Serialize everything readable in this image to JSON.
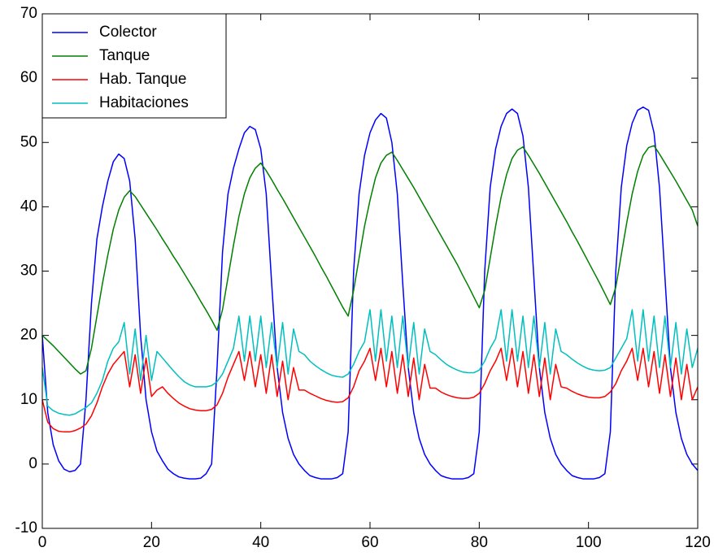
{
  "chart_data": {
    "type": "line",
    "x": [
      0,
      1,
      2,
      3,
      4,
      5,
      6,
      7,
      8,
      9,
      10,
      11,
      12,
      13,
      14,
      15,
      16,
      17,
      18,
      19,
      20,
      21,
      22,
      23,
      24,
      25,
      26,
      27,
      28,
      29,
      30,
      31,
      32,
      33,
      34,
      35,
      36,
      37,
      38,
      39,
      40,
      41,
      42,
      43,
      44,
      45,
      46,
      47,
      48,
      49,
      50,
      51,
      52,
      53,
      54,
      55,
      56,
      57,
      58,
      59,
      60,
      61,
      62,
      63,
      64,
      65,
      66,
      67,
      68,
      69,
      70,
      71,
      72,
      73,
      74,
      75,
      76,
      77,
      78,
      79,
      80,
      81,
      82,
      83,
      84,
      85,
      86,
      87,
      88,
      89,
      90,
      91,
      92,
      93,
      94,
      95,
      96,
      97,
      98,
      99,
      100,
      101,
      102,
      103,
      104,
      105,
      106,
      107,
      108,
      109,
      110,
      111,
      112,
      113,
      114,
      115,
      116,
      117,
      118,
      119,
      120
    ],
    "series": [
      {
        "name": "Colector",
        "color": "#0000ff",
        "values": [
          20,
          8,
          3,
          0.5,
          -0.8,
          -1.2,
          -1,
          0,
          10,
          25,
          35,
          40,
          44,
          47,
          48.2,
          47.5,
          44,
          35,
          20,
          10,
          5,
          2,
          0.5,
          -0.8,
          -1.5,
          -2,
          -2.2,
          -2.3,
          -2.3,
          -2.2,
          -1.5,
          0,
          15,
          33,
          42,
          46,
          49,
          51.5,
          52.5,
          52,
          49,
          42,
          28,
          15,
          8,
          4,
          1.5,
          0,
          -1,
          -1.8,
          -2.1,
          -2.3,
          -2.3,
          -2.3,
          -2.1,
          -1.5,
          5,
          30,
          42,
          48,
          51.5,
          53.5,
          54.5,
          53.8,
          50,
          42,
          28,
          15,
          8,
          4,
          1.5,
          0,
          -1,
          -1.8,
          -2.1,
          -2.3,
          -2.3,
          -2.3,
          -2.1,
          -1.5,
          5,
          30,
          43,
          49,
          52.5,
          54.5,
          55.2,
          54.5,
          51,
          43,
          29,
          15,
          8,
          4,
          1.5,
          0,
          -1,
          -1.8,
          -2.1,
          -2.3,
          -2.3,
          -2.3,
          -2.1,
          -1.5,
          5,
          30,
          43,
          49.5,
          53,
          55,
          55.5,
          55,
          51.5,
          43,
          29,
          15,
          8,
          4,
          1.5,
          0,
          -1
        ]
      },
      {
        "name": "Tanque",
        "color": "#008000",
        "values": [
          20,
          19.2,
          18.4,
          17.5,
          16.6,
          15.7,
          14.8,
          14,
          14.5,
          18,
          23,
          28,
          32.5,
          36.5,
          39.5,
          41.5,
          42.5,
          41.6,
          40.3,
          39,
          37.7,
          36.4,
          35,
          33.7,
          32.3,
          31,
          29.6,
          28.2,
          26.8,
          25.3,
          23.9,
          22.4,
          20.8,
          24,
          29,
          34,
          38.5,
          42,
          44.5,
          46,
          46.8,
          45.6,
          44.2,
          42.7,
          41.3,
          39.8,
          38.3,
          36.8,
          35.3,
          33.8,
          32.3,
          30.7,
          29.2,
          27.6,
          26,
          24.4,
          23,
          27,
          32,
          37,
          41,
          44.5,
          46.8,
          48,
          48.5,
          47.2,
          45.8,
          44.4,
          43,
          41.5,
          40,
          38.5,
          37,
          35.5,
          34,
          32.5,
          31,
          29.3,
          27.7,
          26,
          24.3,
          27,
          32,
          37,
          41.5,
          45,
          47.5,
          48.8,
          49.3,
          48,
          46.6,
          45.2,
          43.7,
          42.2,
          40.7,
          39.2,
          37.7,
          36.1,
          34.6,
          33,
          31.4,
          29.8,
          28.2,
          26.5,
          24.8,
          27.5,
          32.5,
          37.5,
          42,
          45.5,
          48,
          49.2,
          49.5,
          48.2,
          46.8,
          45.4,
          44,
          42.5,
          41,
          39.5,
          37
        ]
      },
      {
        "name": "Hab. Tanque",
        "color": "#ff0000",
        "values": [
          10,
          6.5,
          5.5,
          5.1,
          5,
          5,
          5.2,
          5.6,
          6.2,
          7.5,
          9.5,
          12,
          14,
          15.5,
          16.5,
          17.5,
          12,
          17,
          11,
          16.5,
          10.5,
          11.5,
          12,
          11,
          10.2,
          9.5,
          9,
          8.6,
          8.4,
          8.3,
          8.3,
          8.5,
          9.2,
          11,
          13.5,
          15.5,
          17.5,
          13,
          17.5,
          12,
          17,
          11,
          17,
          10.5,
          16,
          10,
          15,
          11.5,
          11.5,
          11,
          10.6,
          10.2,
          9.9,
          9.7,
          9.6,
          9.7,
          10.3,
          12,
          14.5,
          16,
          18,
          13,
          18,
          12,
          17.5,
          11,
          17,
          10.5,
          16.5,
          10,
          15.5,
          11.8,
          11.8,
          11.2,
          10.8,
          10.5,
          10.3,
          10.2,
          10.2,
          10.4,
          11,
          12.5,
          14.5,
          16,
          18,
          13,
          18,
          12,
          17.5,
          11,
          17,
          10.5,
          16.5,
          10,
          15.5,
          12,
          11.8,
          11.3,
          10.9,
          10.6,
          10.4,
          10.3,
          10.3,
          10.5,
          11.2,
          12.5,
          14.5,
          16,
          18,
          13,
          18,
          12,
          17.5,
          11,
          17,
          10.5,
          16.5,
          10,
          15.5,
          10,
          12
        ]
      },
      {
        "name": "Habitaciones",
        "color": "#00bfbf",
        "values": [
          15,
          9,
          8.3,
          7.9,
          7.7,
          7.6,
          7.8,
          8.3,
          8.8,
          9.5,
          11,
          13,
          16,
          18,
          19,
          22,
          14,
          21,
          13,
          20,
          13,
          17.5,
          16.5,
          15.5,
          14.5,
          13.6,
          12.8,
          12.3,
          12,
          12,
          12,
          12.2,
          12.8,
          14,
          16,
          18,
          23,
          16,
          23,
          16,
          23,
          15,
          22,
          15,
          22,
          14,
          21,
          17.5,
          17,
          16,
          15.3,
          14.7,
          14.2,
          13.8,
          13.6,
          13.5,
          14,
          15.5,
          17.5,
          19,
          24,
          16,
          24,
          16,
          23,
          15,
          23,
          15,
          22,
          14,
          21,
          17.5,
          17,
          16.2,
          15.5,
          15,
          14.6,
          14.3,
          14.2,
          14.2,
          14.6,
          16,
          18,
          19.5,
          24,
          16,
          24,
          16,
          23,
          15,
          23,
          15,
          22,
          14,
          21,
          17.5,
          17,
          16.3,
          15.7,
          15.2,
          14.8,
          14.6,
          14.5,
          14.6,
          15,
          16.5,
          18,
          19.5,
          24,
          16,
          24,
          16,
          23,
          15,
          23,
          15,
          22,
          14,
          21,
          15,
          18
        ]
      }
    ],
    "xlim": [
      0,
      120
    ],
    "ylim": [
      -10,
      70
    ],
    "xticks": [
      0,
      20,
      40,
      60,
      80,
      100,
      120
    ],
    "yticks": [
      -10,
      0,
      10,
      20,
      30,
      40,
      50,
      60,
      70
    ],
    "legend": "upper left"
  }
}
